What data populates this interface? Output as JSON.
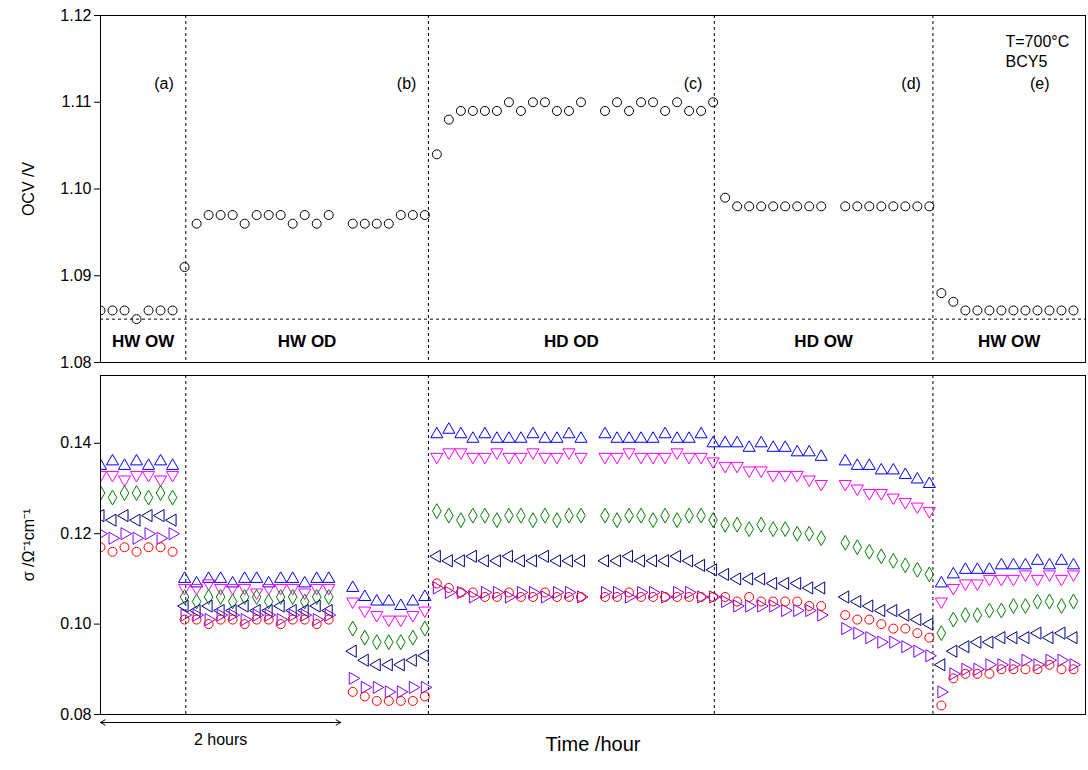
{
  "chart_data": [
    {
      "type": "scatter",
      "ylabel": "OCV /V",
      "x": [
        0,
        0.1,
        0.2,
        0.3,
        0.4,
        0.5,
        0.6,
        0.7,
        0.8,
        0.9,
        1.0,
        1.1,
        1.2,
        1.3,
        1.4,
        1.5,
        1.6,
        1.7,
        1.8,
        1.9,
        2.0,
        2.1,
        2.2,
        2.3,
        2.4,
        2.5,
        2.6,
        2.7,
        2.8,
        2.9,
        3.0,
        3.1,
        3.2,
        3.3,
        3.4,
        3.5,
        3.6,
        3.7,
        3.8,
        3.9,
        4.0,
        4.1,
        4.2,
        4.3,
        4.4,
        4.5,
        4.6,
        4.7,
        4.8,
        4.9,
        5.0,
        5.1,
        5.2,
        5.3,
        5.4,
        5.5,
        5.6,
        5.7,
        5.8,
        5.9,
        6.0,
        6.1,
        6.2,
        6.3,
        6.4,
        6.5,
        6.6,
        6.7,
        6.8,
        6.9,
        7.0,
        7.1,
        7.2,
        7.3,
        7.4,
        7.5,
        7.6,
        7.7,
        7.8,
        7.9,
        8.0,
        8.1
      ],
      "xlim": [
        0,
        8.2
      ],
      "ylim": [
        1.08,
        1.12
      ],
      "yticks": [
        1.08,
        1.09,
        {
          "value": 1.1,
          "label": "1.10"
        },
        1.11,
        1.12
      ],
      "tick_labels": "y",
      "series": [
        {
          "color": "#000000",
          "marker": "circle",
          "values": [
            1.086,
            1.086,
            1.086,
            1.085,
            1.086,
            1.086,
            1.086,
            1.091,
            1.096,
            1.097,
            1.097,
            1.097,
            1.096,
            1.097,
            1.097,
            1.097,
            1.096,
            1.097,
            1.096,
            1.097,
            null,
            1.096,
            1.096,
            1.096,
            1.096,
            1.097,
            1.097,
            1.097,
            1.104,
            1.108,
            1.109,
            1.109,
            1.109,
            1.109,
            1.11,
            1.109,
            1.11,
            1.11,
            1.109,
            1.109,
            1.11,
            null,
            1.109,
            1.11,
            1.109,
            1.11,
            1.11,
            1.109,
            1.11,
            1.109,
            1.109,
            1.11,
            1.099,
            1.098,
            1.098,
            1.098,
            1.098,
            1.098,
            1.098,
            1.098,
            1.098,
            null,
            1.098,
            1.098,
            1.098,
            1.098,
            1.098,
            1.098,
            1.098,
            1.098,
            1.088,
            1.087,
            1.086,
            1.086,
            1.086,
            1.086,
            1.086,
            1.086,
            1.086,
            1.086,
            1.086,
            1.086
          ]
        }
      ],
      "boundaries": [
        0.71,
        2.73,
        5.11,
        6.93
      ],
      "reference": 1.085,
      "letters": [
        "(a)",
        "(b)",
        "(c)",
        "(d)",
        "(e)"
      ],
      "notes": [
        "T=700°C",
        "BCY5"
      ],
      "segments": [
        "HW OW",
        "HW OD",
        "HD OD",
        "HD OW",
        "HW OW"
      ]
    },
    {
      "type": "scatter",
      "xlabel": "Time /hour",
      "ylabel": "σ /Ω⁻¹cm⁻¹",
      "x": [
        0,
        0.1,
        0.2,
        0.3,
        0.4,
        0.5,
        0.6,
        0.7,
        0.8,
        0.9,
        1.0,
        1.1,
        1.2,
        1.3,
        1.4,
        1.5,
        1.6,
        1.7,
        1.8,
        1.9,
        2.0,
        2.1,
        2.2,
        2.3,
        2.4,
        2.5,
        2.6,
        2.7,
        2.8,
        2.9,
        3.0,
        3.1,
        3.2,
        3.3,
        3.4,
        3.5,
        3.6,
        3.7,
        3.8,
        3.9,
        4.0,
        4.1,
        4.2,
        4.3,
        4.4,
        4.5,
        4.6,
        4.7,
        4.8,
        4.9,
        5.0,
        5.1,
        5.2,
        5.3,
        5.4,
        5.5,
        5.6,
        5.7,
        5.8,
        5.9,
        6.0,
        6.1,
        6.2,
        6.3,
        6.4,
        6.5,
        6.6,
        6.7,
        6.8,
        6.9,
        7.0,
        7.1,
        7.2,
        7.3,
        7.4,
        7.5,
        7.6,
        7.7,
        7.8,
        7.9,
        8.0,
        8.1
      ],
      "xlim": [
        0,
        8.2
      ],
      "ylim": [
        0.08,
        0.155
      ],
      "yticks": [
        0.08,
        {
          "value": 0.1,
          "label": "0.10"
        },
        0.12,
        0.14
      ],
      "tick_labels": "y",
      "boundaries": [
        0.71,
        2.73,
        5.11,
        6.93
      ],
      "span": {
        "label": "2 hours",
        "x": [
          0,
          2
        ]
      },
      "series": [
        {
          "color": "#0000ff",
          "marker": "triangle-up",
          "values": [
            0.135,
            0.136,
            0.135,
            0.136,
            0.135,
            0.136,
            0.135,
            0.11,
            0.109,
            0.11,
            0.11,
            0.109,
            0.11,
            0.11,
            0.109,
            0.11,
            0.11,
            0.109,
            0.11,
            0.11,
            null,
            0.108,
            0.106,
            0.105,
            0.105,
            0.104,
            0.105,
            0.106,
            0.142,
            0.143,
            0.142,
            0.141,
            0.142,
            0.141,
            0.141,
            0.141,
            0.142,
            0.141,
            0.141,
            0.142,
            0.141,
            null,
            0.142,
            0.141,
            0.141,
            0.141,
            0.141,
            0.142,
            0.141,
            0.141,
            0.142,
            0.14,
            0.14,
            0.14,
            0.139,
            0.14,
            0.139,
            0.139,
            0.138,
            0.138,
            0.137,
            null,
            0.136,
            0.135,
            0.135,
            0.134,
            0.134,
            0.133,
            0.132,
            0.131,
            0.109,
            0.111,
            0.112,
            0.112,
            0.112,
            0.113,
            0.113,
            0.113,
            0.114,
            0.113,
            0.114,
            0.113
          ]
        },
        {
          "color": "#ff00ff",
          "marker": "triangle-down",
          "values": [
            0.133,
            0.133,
            0.132,
            0.133,
            0.133,
            0.132,
            0.133,
            0.108,
            0.108,
            0.109,
            0.108,
            0.108,
            0.108,
            0.107,
            0.108,
            0.108,
            0.108,
            0.107,
            0.108,
            0.108,
            null,
            0.105,
            0.103,
            0.102,
            0.101,
            0.101,
            0.102,
            0.103,
            0.137,
            0.138,
            0.138,
            0.137,
            0.137,
            0.138,
            0.137,
            0.137,
            0.138,
            0.137,
            0.137,
            0.138,
            0.137,
            null,
            0.137,
            0.137,
            0.138,
            0.137,
            0.137,
            0.137,
            0.138,
            0.137,
            0.137,
            0.136,
            0.135,
            0.135,
            0.134,
            0.134,
            0.133,
            0.133,
            0.133,
            0.132,
            0.131,
            null,
            0.131,
            0.13,
            0.129,
            0.129,
            0.128,
            0.127,
            0.126,
            0.125,
            0.105,
            0.108,
            0.109,
            0.109,
            0.11,
            0.11,
            0.11,
            0.111,
            0.11,
            0.111,
            0.11,
            0.111
          ]
        },
        {
          "color": "#008000",
          "marker": "diamond",
          "values": [
            0.129,
            0.128,
            0.129,
            0.129,
            0.128,
            0.129,
            0.128,
            0.106,
            0.105,
            0.106,
            0.106,
            0.105,
            0.106,
            0.106,
            0.105,
            0.106,
            0.106,
            0.105,
            0.106,
            0.106,
            null,
            0.099,
            0.097,
            0.096,
            0.096,
            0.096,
            0.097,
            0.099,
            0.125,
            0.124,
            0.123,
            0.124,
            0.124,
            0.123,
            0.124,
            0.124,
            0.123,
            0.124,
            0.123,
            0.124,
            0.124,
            null,
            0.124,
            0.123,
            0.124,
            0.124,
            0.123,
            0.124,
            0.123,
            0.124,
            0.124,
            0.123,
            0.122,
            0.122,
            0.121,
            0.122,
            0.121,
            0.121,
            0.12,
            0.12,
            0.119,
            null,
            0.118,
            0.117,
            0.116,
            0.115,
            0.114,
            0.113,
            0.112,
            0.111,
            0.098,
            0.101,
            0.102,
            0.102,
            0.103,
            0.103,
            0.104,
            0.104,
            0.105,
            0.105,
            0.104,
            0.105
          ]
        },
        {
          "color": "#000080",
          "marker": "triangle-left",
          "values": [
            0.124,
            0.123,
            0.124,
            0.123,
            0.124,
            0.124,
            0.123,
            0.104,
            0.103,
            0.104,
            0.103,
            0.103,
            0.104,
            0.103,
            0.103,
            0.104,
            0.103,
            0.103,
            0.104,
            0.103,
            null,
            0.094,
            0.092,
            0.091,
            0.091,
            0.091,
            0.092,
            0.093,
            0.115,
            0.114,
            0.114,
            0.115,
            0.114,
            0.114,
            0.115,
            0.114,
            0.114,
            0.115,
            0.114,
            0.114,
            0.114,
            null,
            0.114,
            0.114,
            0.115,
            0.114,
            0.114,
            0.114,
            0.115,
            0.114,
            0.113,
            0.112,
            0.111,
            0.11,
            0.11,
            0.11,
            0.109,
            0.109,
            0.109,
            0.108,
            0.108,
            null,
            0.106,
            0.105,
            0.104,
            0.103,
            0.103,
            0.102,
            0.101,
            0.1,
            0.091,
            0.094,
            0.095,
            0.096,
            0.096,
            0.097,
            0.097,
            0.097,
            0.098,
            0.097,
            0.098,
            0.097
          ]
        },
        {
          "color": "#8000ff",
          "marker": "triangle-right",
          "values": [
            0.12,
            0.119,
            0.12,
            0.119,
            0.12,
            0.119,
            0.12,
            0.102,
            0.102,
            0.101,
            0.102,
            0.102,
            0.101,
            0.102,
            0.102,
            0.101,
            0.102,
            0.102,
            0.101,
            0.102,
            null,
            0.088,
            0.086,
            0.086,
            0.085,
            0.085,
            0.086,
            0.086,
            0.108,
            0.107,
            0.107,
            0.106,
            0.107,
            0.107,
            0.106,
            0.107,
            0.107,
            0.106,
            0.107,
            0.107,
            0.106,
            null,
            0.107,
            0.107,
            0.106,
            0.107,
            0.107,
            0.106,
            0.107,
            0.107,
            0.106,
            0.106,
            0.105,
            0.104,
            0.104,
            0.104,
            0.104,
            0.103,
            0.103,
            0.103,
            0.102,
            null,
            0.099,
            0.098,
            0.097,
            0.096,
            0.096,
            0.095,
            0.094,
            0.093,
            0.085,
            0.089,
            0.09,
            0.09,
            0.091,
            0.091,
            0.091,
            0.092,
            0.091,
            0.092,
            0.092,
            0.091
          ]
        },
        {
          "color": "#ff0000",
          "marker": "circle",
          "values": [
            0.117,
            0.116,
            0.117,
            0.116,
            0.117,
            0.117,
            0.116,
            0.101,
            0.101,
            0.1,
            0.101,
            0.101,
            0.1,
            0.101,
            0.101,
            0.1,
            0.101,
            0.101,
            0.1,
            0.101,
            null,
            0.085,
            0.084,
            0.083,
            0.083,
            0.083,
            0.083,
            0.084,
            0.109,
            0.108,
            0.107,
            0.107,
            0.106,
            0.106,
            0.107,
            0.106,
            0.106,
            0.107,
            0.106,
            0.106,
            0.106,
            null,
            0.106,
            0.106,
            0.107,
            0.106,
            0.106,
            0.106,
            0.106,
            0.106,
            0.106,
            0.106,
            0.106,
            0.105,
            0.106,
            0.105,
            0.105,
            0.105,
            0.105,
            0.104,
            0.104,
            null,
            0.102,
            0.101,
            0.101,
            0.1,
            0.099,
            0.099,
            0.098,
            0.097,
            0.082,
            0.088,
            0.089,
            0.089,
            0.089,
            0.09,
            0.09,
            0.09,
            0.09,
            0.091,
            0.09,
            0.09
          ]
        }
      ]
    }
  ]
}
